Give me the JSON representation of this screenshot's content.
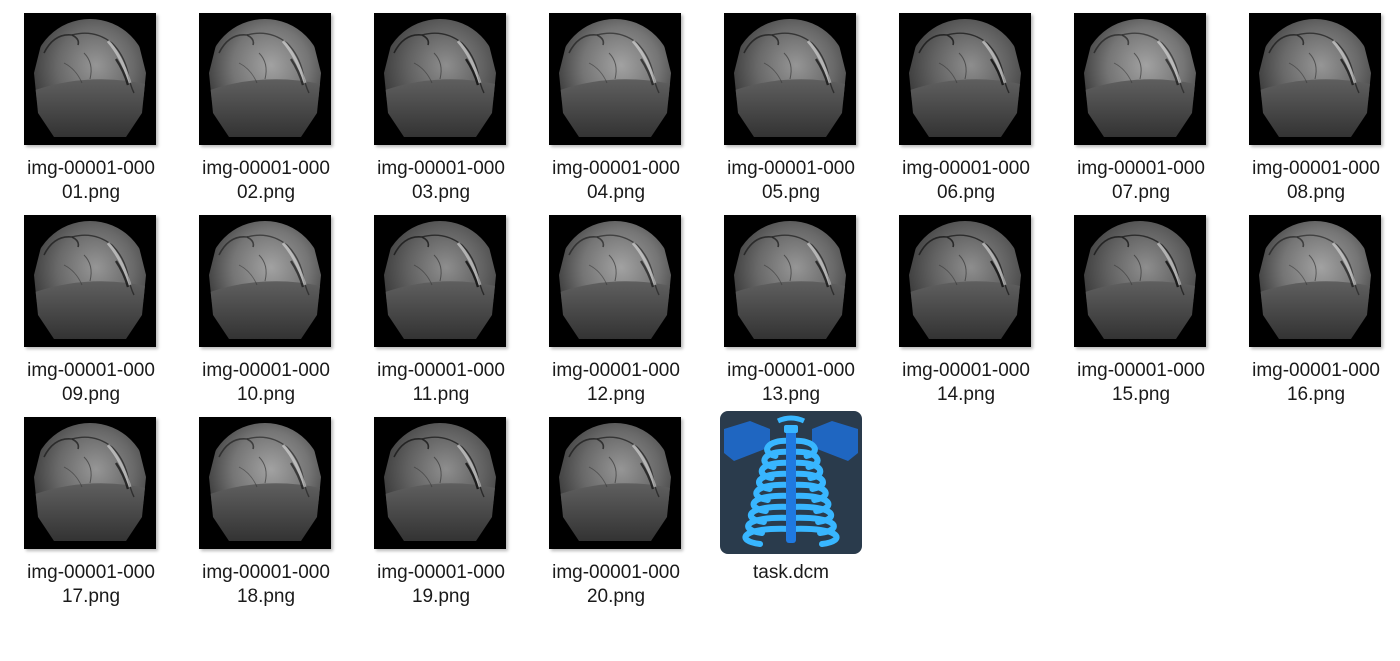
{
  "files": [
    {
      "name": "img-00001-00001.png",
      "label_line1": "img-00001-000",
      "label_line2": "01.png",
      "type": "png",
      "icon": "angiogram-thumbnail",
      "variant": 0
    },
    {
      "name": "img-00001-00002.png",
      "label_line1": "img-00001-000",
      "label_line2": "02.png",
      "type": "png",
      "icon": "angiogram-thumbnail",
      "variant": 1
    },
    {
      "name": "img-00001-00003.png",
      "label_line1": "img-00001-000",
      "label_line2": "03.png",
      "type": "png",
      "icon": "angiogram-thumbnail",
      "variant": 2
    },
    {
      "name": "img-00001-00004.png",
      "label_line1": "img-00001-000",
      "label_line2": "04.png",
      "type": "png",
      "icon": "angiogram-thumbnail",
      "variant": 1
    },
    {
      "name": "img-00001-00005.png",
      "label_line1": "img-00001-000",
      "label_line2": "05.png",
      "type": "png",
      "icon": "angiogram-thumbnail",
      "variant": 0
    },
    {
      "name": "img-00001-00006.png",
      "label_line1": "img-00001-000",
      "label_line2": "06.png",
      "type": "png",
      "icon": "angiogram-thumbnail",
      "variant": 2
    },
    {
      "name": "img-00001-00007.png",
      "label_line1": "img-00001-000",
      "label_line2": "07.png",
      "type": "png",
      "icon": "angiogram-thumbnail",
      "variant": 1
    },
    {
      "name": "img-00001-00008.png",
      "label_line1": "img-00001-000",
      "label_line2": "08.png",
      "type": "png",
      "icon": "angiogram-thumbnail",
      "variant": 0
    },
    {
      "name": "img-00001-00009.png",
      "label_line1": "img-00001-000",
      "label_line2": "09.png",
      "type": "png",
      "icon": "angiogram-thumbnail",
      "variant": 0
    },
    {
      "name": "img-00001-00010.png",
      "label_line1": "img-00001-000",
      "label_line2": "10.png",
      "type": "png",
      "icon": "angiogram-thumbnail",
      "variant": 1
    },
    {
      "name": "img-00001-00011.png",
      "label_line1": "img-00001-000",
      "label_line2": "11.png",
      "type": "png",
      "icon": "angiogram-thumbnail",
      "variant": 2
    },
    {
      "name": "img-00001-00012.png",
      "label_line1": "img-00001-000",
      "label_line2": "12.png",
      "type": "png",
      "icon": "angiogram-thumbnail",
      "variant": 1
    },
    {
      "name": "img-00001-00013.png",
      "label_line1": "img-00001-000",
      "label_line2": "13.png",
      "type": "png",
      "icon": "angiogram-thumbnail",
      "variant": 0
    },
    {
      "name": "img-00001-00014.png",
      "label_line1": "img-00001-000",
      "label_line2": "14.png",
      "type": "png",
      "icon": "angiogram-thumbnail",
      "variant": 2
    },
    {
      "name": "img-00001-00015.png",
      "label_line1": "img-00001-000",
      "label_line2": "15.png",
      "type": "png",
      "icon": "angiogram-thumbnail",
      "variant": 2
    },
    {
      "name": "img-00001-00016.png",
      "label_line1": "img-00001-000",
      "label_line2": "16.png",
      "type": "png",
      "icon": "angiogram-thumbnail",
      "variant": 1
    },
    {
      "name": "img-00001-00017.png",
      "label_line1": "img-00001-000",
      "label_line2": "17.png",
      "type": "png",
      "icon": "angiogram-thumbnail",
      "variant": 0
    },
    {
      "name": "img-00001-00018.png",
      "label_line1": "img-00001-000",
      "label_line2": "18.png",
      "type": "png",
      "icon": "angiogram-thumbnail",
      "variant": 1
    },
    {
      "name": "img-00001-00019.png",
      "label_line1": "img-00001-000",
      "label_line2": "19.png",
      "type": "png",
      "icon": "angiogram-thumbnail",
      "variant": 2
    },
    {
      "name": "img-00001-00020.png",
      "label_line1": "img-00001-000",
      "label_line2": "20.png",
      "type": "png",
      "icon": "angiogram-thumbnail",
      "variant": 0
    },
    {
      "name": "task.dcm",
      "label_line1": "task.dcm",
      "label_line2": "",
      "type": "dcm",
      "icon": "ribcage-xray-icon",
      "variant": 0
    }
  ],
  "colors": {
    "background": "#ffffff",
    "label_text": "#1a1a1a",
    "thumbnail_bg": "#000000",
    "dcm_icon_bg": "#2a3b4c",
    "dcm_ribs": "#38b6ff"
  }
}
